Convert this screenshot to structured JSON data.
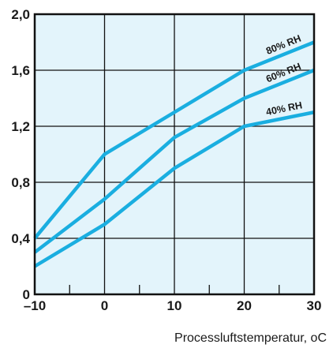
{
  "chart_data": {
    "type": "line",
    "title": "",
    "xlabel": "Processluftstemperatur, oC",
    "ylabel": "",
    "xlim": [
      -10,
      30
    ],
    "ylim": [
      0,
      2.0
    ],
    "x_ticks": [
      -10,
      0,
      10,
      20,
      30
    ],
    "x_tick_labels": [
      "–10",
      "0",
      "10",
      "20",
      "30"
    ],
    "y_ticks": [
      0,
      0.4,
      0.8,
      1.2,
      1.6,
      2.0
    ],
    "y_tick_labels": [
      "0",
      "0,4",
      "0,8",
      "1,2",
      "1,6",
      "2,0"
    ],
    "grid": true,
    "colors": {
      "plot_bg": "#e3f4fb",
      "line": "#1aaee0",
      "grid": "#111111"
    },
    "series": [
      {
        "name": "80% RH",
        "x": [
          -10,
          0,
          10,
          20,
          30
        ],
        "y": [
          0.4,
          1.0,
          1.3,
          1.6,
          1.8
        ]
      },
      {
        "name": "60% RH",
        "x": [
          -10,
          0,
          10,
          20,
          30
        ],
        "y": [
          0.3,
          0.68,
          1.12,
          1.4,
          1.6
        ]
      },
      {
        "name": "40% RH",
        "x": [
          -10,
          0,
          10,
          20,
          30
        ],
        "y": [
          0.2,
          0.5,
          0.9,
          1.2,
          1.3
        ]
      }
    ]
  }
}
